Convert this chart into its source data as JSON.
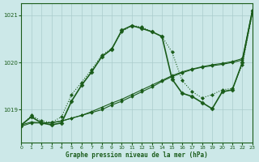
{
  "title": "Graphe pression niveau de la mer (hPa)",
  "bg_color": "#cce8e8",
  "grid_color": "#aacccc",
  "line_color": "#1a5c1a",
  "xlim": [
    0,
    23
  ],
  "ylim": [
    1018.3,
    1021.25
  ],
  "yticks": [
    1019,
    1020,
    1021
  ],
  "xticks": [
    0,
    1,
    2,
    3,
    4,
    5,
    6,
    7,
    8,
    9,
    10,
    11,
    12,
    13,
    14,
    15,
    16,
    17,
    18,
    19,
    20,
    21,
    22,
    23
  ],
  "series": [
    {
      "x": [
        0,
        1,
        2,
        3,
        4,
        5,
        6,
        7,
        8,
        9,
        10,
        11,
        12,
        13,
        14,
        15,
        16,
        17,
        18,
        19,
        20,
        21,
        22,
        23
      ],
      "y": [
        1018.65,
        1018.88,
        1018.76,
        1018.73,
        1018.85,
        1019.32,
        1019.58,
        1019.85,
        1020.15,
        1020.3,
        1020.65,
        1020.78,
        1020.75,
        1020.65,
        1020.55,
        1020.22,
        1019.62,
        1019.38,
        1019.25,
        1019.32,
        1019.42,
        1019.45,
        1019.95,
        1021.05
      ],
      "linestyle": ":",
      "linewidth": 0.8,
      "marker": "D",
      "markersize": 2.0,
      "color": "#1a5c1a"
    },
    {
      "x": [
        0,
        1,
        2,
        3,
        4,
        5,
        6,
        7,
        8,
        9,
        10,
        11,
        12,
        13,
        14,
        15,
        16,
        17,
        18,
        19,
        20,
        21,
        22,
        23
      ],
      "y": [
        1018.65,
        1018.72,
        1018.72,
        1018.73,
        1018.76,
        1018.82,
        1018.88,
        1018.94,
        1019.0,
        1019.1,
        1019.18,
        1019.28,
        1019.38,
        1019.48,
        1019.6,
        1019.7,
        1019.78,
        1019.85,
        1019.9,
        1019.93,
        1019.96,
        1020.0,
        1020.05,
        1021.05
      ],
      "linestyle": "-",
      "linewidth": 0.8,
      "marker": "D",
      "markersize": 1.8,
      "color": "#1a5c1a"
    },
    {
      "x": [
        0,
        1,
        2,
        3,
        4,
        5,
        6,
        7,
        8,
        9,
        10,
        11,
        12,
        13,
        14,
        15,
        16,
        17,
        18,
        19,
        20,
        21,
        22,
        23
      ],
      "y": [
        1018.68,
        1018.74,
        1018.72,
        1018.72,
        1018.76,
        1018.82,
        1018.88,
        1018.96,
        1019.05,
        1019.14,
        1019.22,
        1019.32,
        1019.42,
        1019.52,
        1019.62,
        1019.72,
        1019.8,
        1019.86,
        1019.91,
        1019.95,
        1019.98,
        1020.02,
        1020.08,
        1021.1
      ],
      "linestyle": "-",
      "linewidth": 0.8,
      "marker": "D",
      "markersize": 1.8,
      "color": "#1a5c1a"
    },
    {
      "x": [
        0,
        1,
        2,
        3,
        4,
        5,
        6,
        7,
        8,
        9,
        10,
        11,
        12,
        13,
        14,
        15,
        16,
        17,
        18,
        19,
        20,
        21,
        22,
        23
      ],
      "y": [
        1018.68,
        1018.85,
        1018.72,
        1018.68,
        1018.72,
        1019.18,
        1019.52,
        1019.8,
        1020.12,
        1020.28,
        1020.68,
        1020.78,
        1020.72,
        1020.65,
        1020.55,
        1019.65,
        1019.35,
        1019.28,
        1019.15,
        1019.02,
        1019.38,
        1019.42,
        1020.0,
        1021.1
      ],
      "linestyle": "-",
      "linewidth": 1.2,
      "marker": "D",
      "markersize": 2.5,
      "color": "#1a5c1a"
    }
  ]
}
